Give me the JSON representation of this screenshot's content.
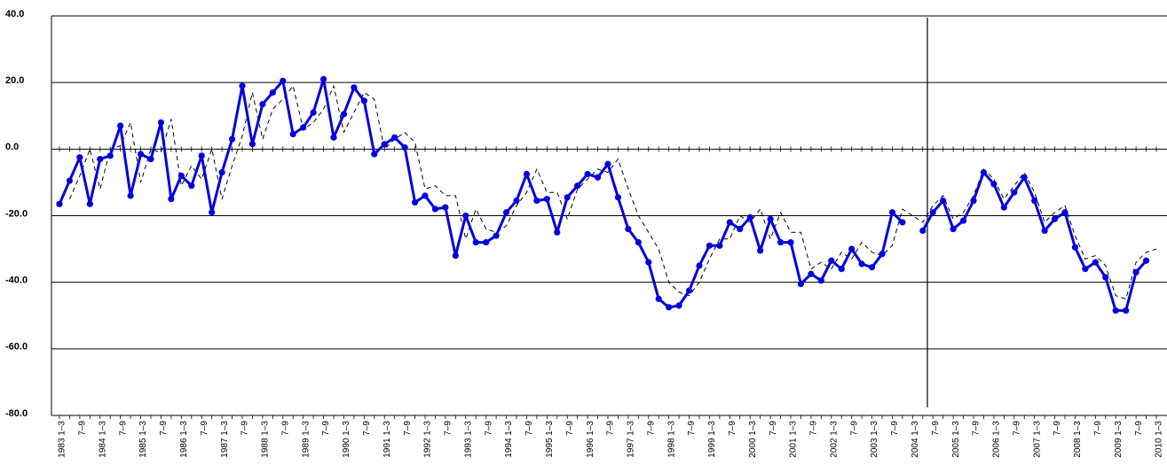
{
  "chart_data": {
    "type": "line",
    "categories": [
      "1983 1–3",
      null,
      "7–9",
      null,
      "1984 1–3",
      null,
      "7–9",
      null,
      "1985 1–3",
      null,
      "7–9",
      null,
      "1986 1–3",
      null,
      "7–9",
      null,
      "1987 1–3",
      null,
      "7–9",
      null,
      "1988 1–3",
      null,
      "7–9",
      null,
      "1989 1–3",
      null,
      "7–9",
      null,
      "1990 1–3",
      null,
      "7–9",
      null,
      "1991 1–3",
      null,
      "7–9",
      null,
      "1992 1–3",
      null,
      "7–9",
      null,
      "1993 1–3",
      null,
      "7–9",
      null,
      "1994 1–3",
      null,
      "7–9",
      null,
      "1995 1–3",
      null,
      "7–9",
      null,
      "1996 1–3",
      null,
      "7–9",
      null,
      "1997 1–3",
      null,
      "7–9",
      null,
      "1998 1–3",
      null,
      "7–9",
      null,
      "1999 1–3",
      null,
      "7–9",
      null,
      "2000 1–3",
      null,
      "7–9",
      null,
      "2001 1–3",
      null,
      "7–9",
      null,
      "2002 1–3",
      null,
      "7–9",
      null,
      "2003 1–3",
      null,
      "7–9",
      null,
      "2004 1–3",
      null,
      "7–9",
      null,
      "2005 1–3",
      null,
      "7–9",
      null,
      "2006 1–3",
      null,
      "7–9",
      null,
      "2007 1–3",
      null,
      "7–9",
      null,
      "2008 1–3",
      null,
      "7–9",
      null,
      "2009 1–3",
      null,
      "7–9",
      null,
      "2010 1–3"
    ],
    "series": [
      {
        "color": "#0000e0",
        "style": "solid",
        "markers": true,
        "values": [
          -16.5,
          -9.5,
          -2.5,
          -16.5,
          -3,
          -2,
          7,
          -14,
          -1.5,
          -3,
          8,
          -15,
          -8,
          -11,
          -2,
          -19,
          -7,
          3,
          19,
          1.5,
          13.5,
          17,
          20.5,
          4.5,
          6.5,
          11,
          21,
          3.5,
          10.5,
          18.5,
          14.5,
          -1.5,
          1.5,
          3.5,
          0.5,
          -16,
          -14,
          -18,
          -17.5,
          -32,
          -20,
          -28,
          -28,
          -26,
          -19,
          -15.5,
          -7.5,
          -15.5,
          -15,
          -25,
          -14.5,
          -11,
          -7.5,
          -8.5,
          -4.5,
          -14.5,
          -24,
          -28,
          -34,
          -45,
          -47.5,
          -47,
          -42.5,
          -35,
          -29,
          -29,
          -22,
          -24,
          -20.5,
          -30.5,
          -21,
          -28,
          -28,
          -40.5,
          -37.5,
          -39.5,
          -33.5,
          -36,
          -30,
          -34.5,
          -35.5,
          -31.5,
          -19,
          -22,
          null,
          -24.5,
          -19,
          -15.5,
          -24,
          -21.5,
          -15.5,
          -7,
          -10.5,
          -17.5,
          -13,
          -8.5,
          -15.5,
          -24.5,
          -21,
          -19,
          -29.5,
          -36,
          -34,
          -38.5,
          -48.5,
          -48.5,
          -37,
          -33.5,
          null
        ]
      },
      {
        "color": "#000000",
        "style": "dashed",
        "markers": false,
        "values": [
          null,
          -15,
          -8,
          0,
          -12,
          0,
          1,
          8,
          -10,
          0,
          -1,
          9,
          -11,
          -5,
          -9,
          0,
          -15,
          -5,
          4,
          17,
          3,
          12,
          15,
          19,
          6,
          8,
          12,
          19,
          5,
          11,
          17,
          15,
          0,
          3,
          5,
          2,
          -12,
          -11,
          -14,
          -14,
          -27,
          -18,
          -24,
          -25,
          -23,
          -17,
          -13,
          -6,
          -13,
          -13,
          -21,
          -12,
          -9,
          -6,
          -7,
          -3,
          -12,
          -20,
          -25,
          -30,
          -40,
          -43,
          -44,
          -40,
          -33,
          -27,
          -27,
          -20,
          -22,
          -18,
          -27,
          -19,
          -25,
          -25,
          -36,
          -34,
          -36,
          -31,
          -33,
          -28,
          -31,
          -32,
          -29,
          -18,
          -20,
          -22,
          -17,
          -14,
          -21,
          -19,
          -14,
          -6,
          -9,
          -15,
          -11,
          -7,
          -13,
          -22,
          -19,
          -17,
          -26,
          -33,
          -32,
          -35,
          -44,
          -45,
          -34,
          -31,
          -30
        ]
      }
    ],
    "ylim": [
      -80,
      40
    ],
    "yticks": [
      {
        "value": -80,
        "label": "-80.0"
      },
      {
        "value": -60,
        "label": "-60.0"
      },
      {
        "value": -40,
        "label": "-40.0"
      },
      {
        "value": -20,
        "label": "-20.0"
      },
      {
        "value": 0,
        "label": "0.0"
      },
      {
        "value": 20,
        "label": "20.0"
      },
      {
        "value": 40,
        "label": "40.0"
      }
    ],
    "grid": true
  }
}
